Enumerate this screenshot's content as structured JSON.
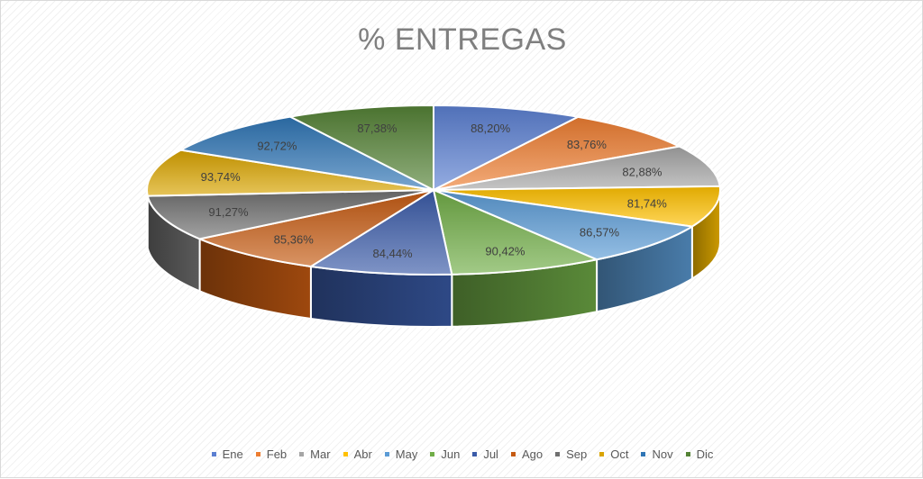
{
  "chart_data": {
    "type": "pie",
    "title": "% ENTREGAS",
    "categories": [
      "Ene",
      "Feb",
      "Mar",
      "Abr",
      "May",
      "Jun",
      "Jul",
      "Ago",
      "Sep",
      "Oct",
      "Nov",
      "Dic"
    ],
    "values": [
      88.2,
      83.76,
      82.88,
      81.74,
      86.57,
      90.42,
      84.44,
      85.36,
      91.27,
      93.74,
      92.72,
      87.38
    ],
    "data_labels": [
      "88,20%",
      "83,76%",
      "82,88%",
      "81,74%",
      "86,57%",
      "90,42%",
      "84,44%",
      "85,36%",
      "91,27%",
      "93,74%",
      "92,72%",
      "87,38%"
    ],
    "colors": [
      "#5b7fd1",
      "#ed7d31",
      "#a5a5a5",
      "#ffc000",
      "#5b9bd5",
      "#70ad47",
      "#3a5ba8",
      "#c55a11",
      "#707070",
      "#d9a400",
      "#2f75b5",
      "#548235"
    ],
    "legend_position": "bottom",
    "style": "3d"
  }
}
